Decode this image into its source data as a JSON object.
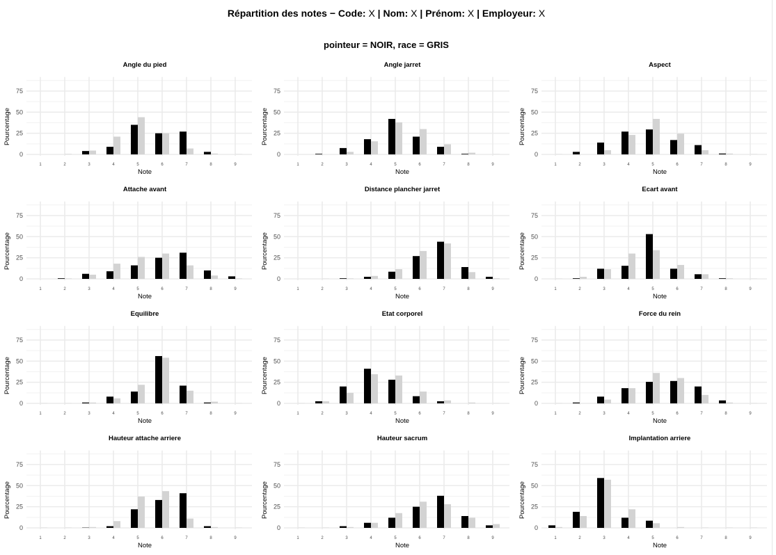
{
  "header": {
    "title_parts": [
      {
        "text": "Répartition des notes − Code: ",
        "bold": true
      },
      {
        "text": "X",
        "bold": false
      },
      {
        "text": " | Nom: ",
        "bold": true
      },
      {
        "text": "X",
        "bold": false
      },
      {
        "text": " | Prénom: ",
        "bold": true
      },
      {
        "text": "X",
        "bold": false
      },
      {
        "text": " | Employeur: ",
        "bold": true
      },
      {
        "text": "X",
        "bold": false
      }
    ],
    "subtitle": "pointeur = NOIR, race = GRIS"
  },
  "colors": {
    "pointeur": "#000000",
    "race": "#d3d3d3",
    "grid": "#ebebeb"
  },
  "chart_data": {
    "type": "bar",
    "layout": "facet-grid-3-columns",
    "title": "Répartition des notes − Code: X | Nom: X | Prénom: X | Employeur: X",
    "subtitle": "pointeur = NOIR, race = GRIS",
    "xlabel": "Note",
    "ylabel": "Pourcentage",
    "categories": [
      "1",
      "2",
      "3",
      "4",
      "5",
      "6",
      "7",
      "8",
      "9"
    ],
    "yticks": [
      "0",
      "25",
      "50",
      "75"
    ],
    "ylim": [
      0,
      90
    ],
    "grid": true,
    "legend": "none (encoded in subtitle)",
    "series_names": [
      "pointeur",
      "race"
    ],
    "panels": [
      {
        "title": "Angle du pied",
        "series": [
          {
            "name": "pointeur",
            "values": [
              0,
              0,
              4,
              9,
              35,
              25,
              27,
              3,
              0
            ]
          },
          {
            "name": "race",
            "values": [
              0,
              0.5,
              4.5,
              21,
              44,
              25,
              7,
              1,
              0.3
            ]
          }
        ]
      },
      {
        "title": "Angle jarret",
        "series": [
          {
            "name": "pointeur",
            "values": [
              0,
              0.7,
              7.5,
              18,
              42,
              21,
              9,
              0.7,
              0
            ]
          },
          {
            "name": "race",
            "values": [
              0,
              0,
              3,
              15.5,
              38,
              30,
              12,
              2,
              0.3
            ]
          }
        ]
      },
      {
        "title": "Aspect",
        "series": [
          {
            "name": "pointeur",
            "values": [
              0,
              3,
              14,
              27,
              29.5,
              17,
              11,
              1,
              0
            ]
          },
          {
            "name": "race",
            "values": [
              0.3,
              0,
              5,
              23,
              42,
              24.5,
              5,
              1,
              0.3
            ]
          }
        ]
      },
      {
        "title": "Attache avant",
        "series": [
          {
            "name": "pointeur",
            "values": [
              0,
              0.7,
              6,
              9,
              16,
              25,
              31,
              10,
              3
            ]
          },
          {
            "name": "race",
            "values": [
              0,
              0.5,
              5,
              18,
              26,
              30,
              16,
              4,
              0.5
            ]
          }
        ]
      },
      {
        "title": "Distance plancher jarret",
        "series": [
          {
            "name": "pointeur",
            "values": [
              0,
              0,
              0.7,
              2.5,
              8.5,
              27,
              44,
              14,
              2.5
            ]
          },
          {
            "name": "race",
            "values": [
              0,
              0.3,
              0.5,
              3.5,
              11.5,
              33,
              42,
              8,
              0.7
            ]
          }
        ]
      },
      {
        "title": "Ecart avant",
        "series": [
          {
            "name": "pointeur",
            "values": [
              0,
              0.7,
              12,
              15.5,
              53,
              12,
              5.5,
              0.7,
              0
            ]
          },
          {
            "name": "race",
            "values": [
              0.3,
              2.5,
              11.5,
              30,
              34,
              16.5,
              5.5,
              0.7,
              0.3
            ]
          }
        ]
      },
      {
        "title": "Equilibre",
        "series": [
          {
            "name": "pointeur",
            "values": [
              0,
              0,
              1,
              8,
              14,
              56,
              21,
              1,
              0
            ]
          },
          {
            "name": "race",
            "values": [
              0.3,
              0.3,
              1,
              6,
              22,
              54,
              15,
              2,
              0.3
            ]
          }
        ]
      },
      {
        "title": "Etat corporel",
        "series": [
          {
            "name": "pointeur",
            "values": [
              0,
              2.5,
              20,
              41,
              28,
              8.5,
              2.5,
              0,
              0
            ]
          },
          {
            "name": "race",
            "values": [
              0.3,
              2.5,
              12.5,
              34.5,
              33,
              14,
              3.5,
              1,
              0.3
            ]
          }
        ]
      },
      {
        "title": "Force du rein",
        "series": [
          {
            "name": "pointeur",
            "values": [
              0,
              1,
              8,
              18,
              25.5,
              26.5,
              20,
              3.5,
              0
            ]
          },
          {
            "name": "race",
            "values": [
              0.3,
              0,
              4.5,
              18,
              36,
              30,
              10,
              1,
              0.3
            ]
          }
        ]
      },
      {
        "title": "Hauteur attache arriere",
        "series": [
          {
            "name": "pointeur",
            "values": [
              0,
              0,
              0.3,
              2,
              22,
              33,
              41,
              2,
              0
            ]
          },
          {
            "name": "race",
            "values": [
              0.3,
              0.3,
              1,
              8,
              37,
              43.5,
              11,
              1,
              0.3
            ]
          }
        ]
      },
      {
        "title": "Hauteur sacrum",
        "series": [
          {
            "name": "pointeur",
            "values": [
              0,
              0,
              2,
              6,
              12,
              25,
              38,
              14,
              3
            ]
          },
          {
            "name": "race",
            "values": [
              0.3,
              0.3,
              1,
              6,
              17.5,
              31,
              28,
              12,
              4.5
            ]
          }
        ]
      },
      {
        "title": "Implantation arriere",
        "series": [
          {
            "name": "pointeur",
            "values": [
              3,
              19,
              59,
              12,
              8.5,
              0,
              0,
              0,
              0
            ]
          },
          {
            "name": "race",
            "values": [
              1,
              14,
              57,
              22,
              5.5,
              1,
              0.3,
              0.3,
              0.3
            ]
          }
        ]
      }
    ]
  }
}
